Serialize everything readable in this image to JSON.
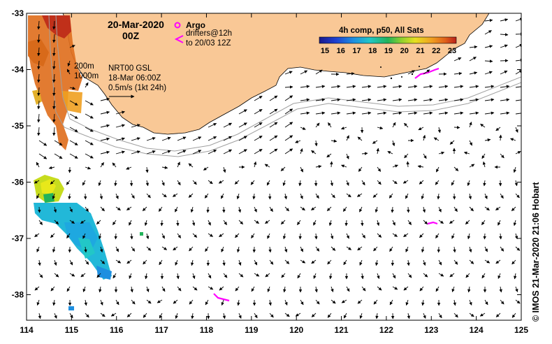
{
  "map": {
    "date": "20-Mar-2020",
    "time": "00Z",
    "products": {
      "sst": "4h comp, p50, All Sats",
      "currents": "NRT00 GSL",
      "currents_date": "18-Mar 06:00Z",
      "scale_label": "0.5m/s (1kt 24h)"
    },
    "contours": [
      "200m",
      "1000m"
    ],
    "legend": {
      "argo": "Argo",
      "drifters_line1": "drifters@12h",
      "drifters_line2": "to 20/03 12Z"
    },
    "colorbar": {
      "ticks": [
        "15",
        "16",
        "17",
        "18",
        "19",
        "20",
        "21",
        "22",
        "23"
      ],
      "colors": [
        "#1a1a8c",
        "#1f3fd0",
        "#1e8fe0",
        "#22c7c7",
        "#22b35a",
        "#8fd12e",
        "#e6e01f",
        "#f0a020",
        "#e0601a",
        "#b8201a"
      ]
    },
    "x_axis": {
      "ticks": [
        "114",
        "115",
        "116",
        "117",
        "118",
        "119",
        "120",
        "121",
        "122",
        "123",
        "124",
        "125"
      ]
    },
    "y_axis": {
      "ticks": [
        "-33",
        "-34",
        "-35",
        "-36",
        "-37",
        "-38"
      ]
    },
    "credit": "©  IMOS 21-Mar-2020 21:06 Hobart",
    "colors": {
      "land": "#f9c896",
      "drifter": "#ff00ff",
      "contour": "#a0a0a0"
    }
  }
}
